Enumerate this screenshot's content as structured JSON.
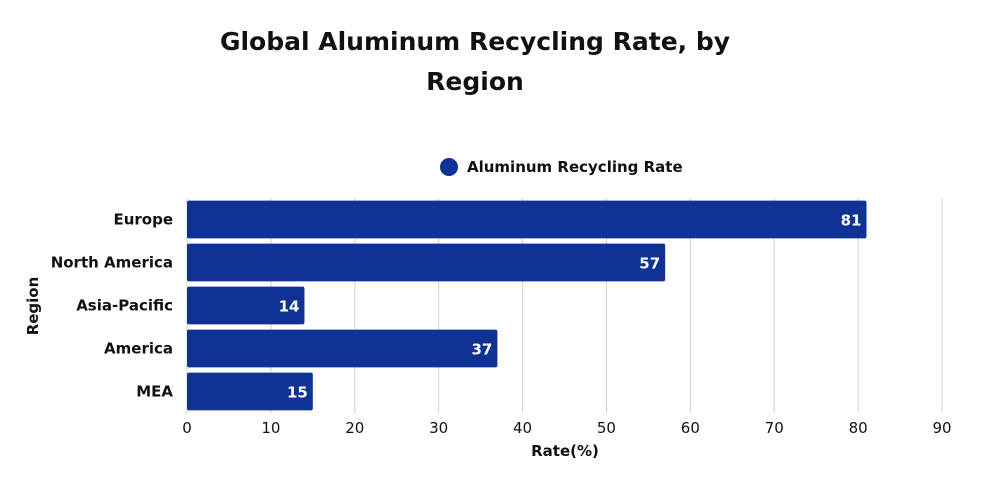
{
  "chart_data": {
    "type": "bar",
    "orientation": "horizontal",
    "title": "Global Aluminum Recycling Rate, by Region",
    "title_lines": [
      "Global Aluminum Recycling Rate, by",
      "Region"
    ],
    "categories": [
      "Europe",
      "North America",
      "Asia-Pacific",
      "America",
      "MEA"
    ],
    "series": [
      {
        "name": "Aluminum Recycling Rate",
        "values": [
          81,
          57,
          14,
          37,
          15
        ],
        "color": "#0f3294"
      }
    ],
    "xlabel": "Rate(%)",
    "ylabel": "Region",
    "xlim": [
      0,
      90
    ],
    "xticks": [
      0,
      10,
      20,
      30,
      40,
      50,
      60,
      70,
      80,
      90
    ],
    "grid": true,
    "legend": "top",
    "data_labels": true
  }
}
